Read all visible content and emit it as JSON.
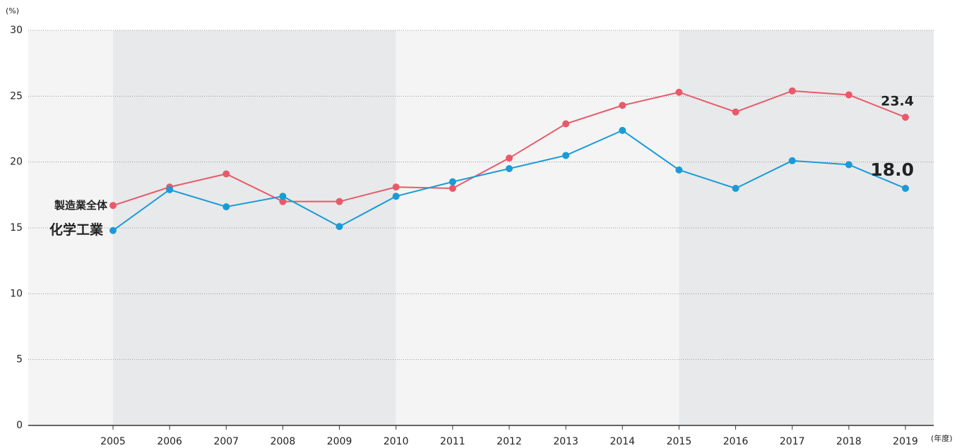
{
  "chart_data": {
    "type": "line",
    "y_unit": "(%)",
    "x_unit": "(年度)",
    "categories": [
      "2005",
      "2006",
      "2007",
      "2008",
      "2009",
      "2010",
      "2011",
      "2012",
      "2013",
      "2014",
      "2015",
      "2016",
      "2017",
      "2018",
      "2019"
    ],
    "series": [
      {
        "name": "製造業全体",
        "color": "#e85a6a",
        "values": [
          16.7,
          18.1,
          19.1,
          17.0,
          17.0,
          18.1,
          18.0,
          20.3,
          22.9,
          24.3,
          25.3,
          23.8,
          25.4,
          25.1,
          23.4
        ],
        "value_labels": [
          null,
          null,
          null,
          null,
          null,
          null,
          null,
          null,
          null,
          null,
          null,
          null,
          null,
          null,
          "23.4"
        ]
      },
      {
        "name": "化学工業",
        "color": "#1a9bd7",
        "values": [
          14.8,
          17.9,
          16.6,
          17.4,
          15.1,
          17.4,
          18.5,
          19.5,
          20.5,
          22.4,
          19.4,
          18.0,
          20.1,
          19.8,
          18.0
        ],
        "value_labels": [
          null,
          null,
          null,
          null,
          null,
          null,
          null,
          null,
          null,
          null,
          null,
          null,
          null,
          null,
          "18.0"
        ]
      }
    ],
    "ylim": [
      0,
      30
    ],
    "yticks": [
      0,
      5,
      10,
      15,
      20,
      25,
      30
    ],
    "grid": true
  }
}
